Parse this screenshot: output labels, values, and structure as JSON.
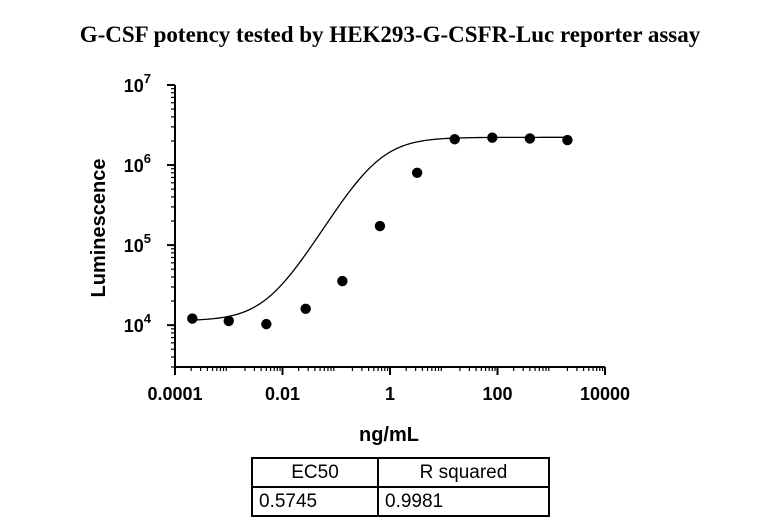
{
  "chart_data": {
    "type": "scatter",
    "title": "G-CSF potency tested by HEK293-G-CSFR-Luc reporter assay",
    "xlabel": "ng/mL",
    "ylabel": "Luminescence",
    "x_scale": "log",
    "y_scale": "log",
    "xlim": [
      0.0001,
      10000
    ],
    "ylim": [
      3000,
      10000000
    ],
    "x_ticks": [
      0.0001,
      0.01,
      1,
      100,
      10000
    ],
    "x_tick_labels": [
      "0.0001",
      "0.01",
      "1",
      "100",
      "10000"
    ],
    "y_ticks": [
      10000,
      100000,
      1000000,
      10000000
    ],
    "y_tick_bases": [
      "10",
      "10",
      "10",
      "10"
    ],
    "y_tick_exponents": [
      "4",
      "5",
      "6",
      "7"
    ],
    "grid": false,
    "series": [
      {
        "x": [
          0.00021,
          0.001,
          0.005,
          0.027,
          0.13,
          0.65,
          3.2,
          16,
          80,
          400,
          2000
        ],
        "y": [
          12100,
          11300,
          10300,
          16000,
          35500,
          173000,
          800000,
          2100000,
          2200000,
          2150000,
          2050000
        ]
      }
    ],
    "fit": {
      "model": "four-parameter logistic",
      "bottom": 11300,
      "top": 2220000,
      "ec50": 0.5745,
      "hill_slope": 1.14
    }
  },
  "results_table": {
    "headers": [
      "EC50",
      "R squared"
    ],
    "values": [
      "0.5745",
      "0.9981"
    ]
  }
}
